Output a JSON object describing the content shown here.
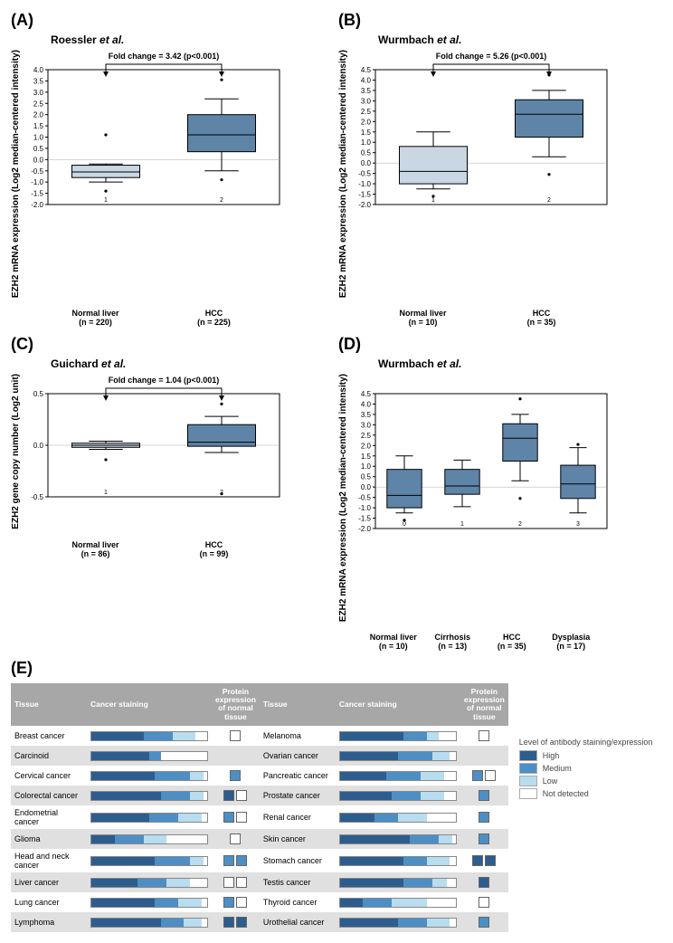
{
  "panelA": {
    "label": "(A)",
    "title_prefix": "Roessler ",
    "title_italic": "et al.",
    "y_label": "EZH2 mRNA expression\n(Log2 median-centered intensity)",
    "fold_change": "Fold change = 3.42 (p<0.001)",
    "ylim_min": -2.0,
    "ylim_max": 4.0,
    "ytick_step": 0.5,
    "aspect_w": 290,
    "aspect_h": 185,
    "groups": [
      {
        "label": "Normal liver",
        "n": "(n = 220)",
        "idx": "1",
        "q1": -0.8,
        "median": -0.55,
        "q3": -0.25,
        "whisker_low": -1.0,
        "whisker_high": -0.2,
        "outliers_low": [
          -1.4
        ],
        "outliers_high": [
          1.1
        ],
        "fill": "#c9d6e3"
      },
      {
        "label": "HCC",
        "n": "(n = 225)",
        "idx": "2",
        "q1": 0.35,
        "median": 1.1,
        "q3": 2.0,
        "whisker_low": -0.5,
        "whisker_high": 2.7,
        "outliers_low": [
          -0.9
        ],
        "outliers_high": [
          3.55
        ],
        "fill": "#5e84a8"
      }
    ]
  },
  "panelB": {
    "label": "(B)",
    "title_prefix": "Wurmbach ",
    "title_italic": "et al.",
    "y_label": "EZH2 mRNA expression\n(Log2 median-centered intensity)",
    "fold_change": "Fold change = 5.26 (p<0.001)",
    "ylim_min": -2.0,
    "ylim_max": 4.5,
    "ytick_step": 0.5,
    "aspect_w": 290,
    "aspect_h": 185,
    "groups": [
      {
        "label": "Normal liver",
        "n": "(n = 10)",
        "idx": "1",
        "q1": -1.0,
        "median": -0.4,
        "q3": 0.8,
        "whisker_low": -1.25,
        "whisker_high": 1.5,
        "outliers_low": [
          -1.6
        ],
        "outliers_high": [],
        "fill": "#c9d6e3"
      },
      {
        "label": "HCC",
        "n": "(n = 35)",
        "idx": "2",
        "q1": 1.25,
        "median": 2.35,
        "q3": 3.05,
        "whisker_low": 0.3,
        "whisker_high": 3.5,
        "outliers_low": [
          -0.55
        ],
        "outliers_high": [
          4.25
        ],
        "fill": "#5e84a8"
      }
    ]
  },
  "panelC": {
    "label": "(C)",
    "title_prefix": "Guichard ",
    "title_italic": "et al.",
    "y_label": "EZH2 gene copy number (Log2 unit)",
    "fold_change": "Fold change = 1.04 (p<0.001)",
    "ylim_min": -0.5,
    "ylim_max": 0.5,
    "ytick_step": 0.5,
    "aspect_w": 290,
    "aspect_h": 150,
    "groups": [
      {
        "label": "Normal liver",
        "n": "(n = 86)",
        "idx": "1",
        "q1": -0.02,
        "median": 0.0,
        "q3": 0.02,
        "whisker_low": -0.04,
        "whisker_high": 0.04,
        "outliers_low": [
          -0.14
        ],
        "outliers_high": [],
        "fill": "#c9d6e3"
      },
      {
        "label": "HCC",
        "n": "(n = 99)",
        "idx": "2",
        "q1": -0.01,
        "median": 0.03,
        "q3": 0.2,
        "whisker_low": -0.07,
        "whisker_high": 0.28,
        "outliers_low": [
          -0.47
        ],
        "outliers_high": [
          0.4
        ],
        "fill": "#5e84a8"
      }
    ]
  },
  "panelD": {
    "label": "(D)",
    "title_prefix": "Wurmbach ",
    "title_italic": "et al.",
    "y_label": "EZH2 mRNA expression\n(Log2 median-centered intensity)",
    "fold_change": "",
    "ylim_min": -2.0,
    "ylim_max": 4.5,
    "ytick_step": 0.5,
    "aspect_w": 290,
    "aspect_h": 185,
    "groups": [
      {
        "label": "Normal liver",
        "n": "(n = 10)",
        "idx": "0",
        "q1": -1.0,
        "median": -0.4,
        "q3": 0.85,
        "whisker_low": -1.25,
        "whisker_high": 1.5,
        "outliers_low": [
          -1.6
        ],
        "outliers_high": [],
        "fill": "#5e84a8"
      },
      {
        "label": "Cirrhosis",
        "n": "(n = 13)",
        "idx": "1",
        "q1": -0.35,
        "median": 0.05,
        "q3": 0.85,
        "whisker_low": -0.95,
        "whisker_high": 1.3,
        "outliers_low": [],
        "outliers_high": [],
        "fill": "#5e84a8"
      },
      {
        "label": "HCC",
        "n": "(n = 35)",
        "idx": "2",
        "q1": 1.25,
        "median": 2.35,
        "q3": 3.05,
        "whisker_low": 0.3,
        "whisker_high": 3.5,
        "outliers_low": [
          -0.55
        ],
        "outliers_high": [
          4.25
        ],
        "fill": "#5e84a8"
      },
      {
        "label": "Dysplasia",
        "n": "(n = 17)",
        "idx": "3",
        "q1": -0.55,
        "median": 0.15,
        "q3": 1.05,
        "whisker_low": -1.25,
        "whisker_high": 1.9,
        "outliers_low": [],
        "outliers_high": [
          2.05
        ],
        "fill": "#5e84a8"
      }
    ]
  },
  "panelE": {
    "label": "(E)",
    "headers": [
      "Tissue",
      "Cancer staining",
      "Protein expression of normal tissue"
    ],
    "legend_title": "Level of antibody staining/expression",
    "legend_items": [
      {
        "level": "high",
        "label": "High"
      },
      {
        "level": "medium",
        "label": "Medium"
      },
      {
        "level": "low",
        "label": "Low"
      },
      {
        "level": "nd",
        "label": "Not detected"
      }
    ],
    "left": [
      {
        "name": "Breast cancer",
        "bar": {
          "high": 0.45,
          "medium": 0.25,
          "low": 0.2,
          "nd": 0.1
        },
        "protein": [
          "nd"
        ]
      },
      {
        "name": "Carcinoid",
        "bar": {
          "high": 0.5,
          "medium": 0.1,
          "low": 0.0,
          "nd": 0.4
        },
        "protein": []
      },
      {
        "name": "Cervical cancer",
        "bar": {
          "high": 0.55,
          "medium": 0.3,
          "low": 0.12,
          "nd": 0.03
        },
        "protein": [
          "medium"
        ]
      },
      {
        "name": "Colorectal cancer",
        "bar": {
          "high": 0.6,
          "medium": 0.25,
          "low": 0.12,
          "nd": 0.03
        },
        "protein": [
          "high",
          "nd"
        ]
      },
      {
        "name": "Endometrial cancer",
        "bar": {
          "high": 0.5,
          "medium": 0.25,
          "low": 0.2,
          "nd": 0.05
        },
        "protein": [
          "medium",
          "nd"
        ]
      },
      {
        "name": "Glioma",
        "bar": {
          "high": 0.2,
          "medium": 0.25,
          "low": 0.2,
          "nd": 0.35
        },
        "protein": [
          "nd"
        ]
      },
      {
        "name": "Head and neck cancer",
        "bar": {
          "high": 0.55,
          "medium": 0.3,
          "low": 0.12,
          "nd": 0.03
        },
        "protein": [
          "medium",
          "medium"
        ]
      },
      {
        "name": "Liver cancer",
        "bar": {
          "high": 0.4,
          "medium": 0.25,
          "low": 0.2,
          "nd": 0.15
        },
        "protein": [
          "nd",
          "nd"
        ]
      },
      {
        "name": "Lung cancer",
        "bar": {
          "high": 0.55,
          "medium": 0.2,
          "low": 0.2,
          "nd": 0.05
        },
        "protein": [
          "medium",
          "nd"
        ]
      },
      {
        "name": "Lymphoma",
        "bar": {
          "high": 0.6,
          "medium": 0.2,
          "low": 0.15,
          "nd": 0.05
        },
        "protein": [
          "high",
          "high"
        ]
      }
    ],
    "right": [
      {
        "name": "Melanoma",
        "bar": {
          "high": 0.55,
          "medium": 0.2,
          "low": 0.1,
          "nd": 0.15
        },
        "protein": [
          "nd"
        ]
      },
      {
        "name": "Ovarian cancer",
        "bar": {
          "high": 0.5,
          "medium": 0.3,
          "low": 0.15,
          "nd": 0.05
        },
        "protein": []
      },
      {
        "name": "Pancreatic cancer",
        "bar": {
          "high": 0.4,
          "medium": 0.3,
          "low": 0.2,
          "nd": 0.1
        },
        "protein": [
          "medium",
          "nd"
        ]
      },
      {
        "name": "Prostate cancer",
        "bar": {
          "high": 0.45,
          "medium": 0.25,
          "low": 0.2,
          "nd": 0.1
        },
        "protein": [
          "medium"
        ]
      },
      {
        "name": "Renal cancer",
        "bar": {
          "high": 0.3,
          "medium": 0.2,
          "low": 0.25,
          "nd": 0.25
        },
        "protein": [
          "medium"
        ]
      },
      {
        "name": "Skin cancer",
        "bar": {
          "high": 0.6,
          "medium": 0.25,
          "low": 0.12,
          "nd": 0.03
        },
        "protein": [
          "medium"
        ]
      },
      {
        "name": "Stomach cancer",
        "bar": {
          "high": 0.55,
          "medium": 0.2,
          "low": 0.2,
          "nd": 0.05
        },
        "protein": [
          "high",
          "high"
        ]
      },
      {
        "name": "Testis cancer",
        "bar": {
          "high": 0.55,
          "medium": 0.25,
          "low": 0.12,
          "nd": 0.08
        },
        "protein": [
          "high"
        ]
      },
      {
        "name": "Thyroid cancer",
        "bar": {
          "high": 0.2,
          "medium": 0.25,
          "low": 0.3,
          "nd": 0.25
        },
        "protein": [
          "nd"
        ]
      },
      {
        "name": "Urothelial cancer",
        "bar": {
          "high": 0.5,
          "medium": 0.25,
          "low": 0.2,
          "nd": 0.05
        },
        "protein": [
          "medium"
        ]
      }
    ]
  }
}
